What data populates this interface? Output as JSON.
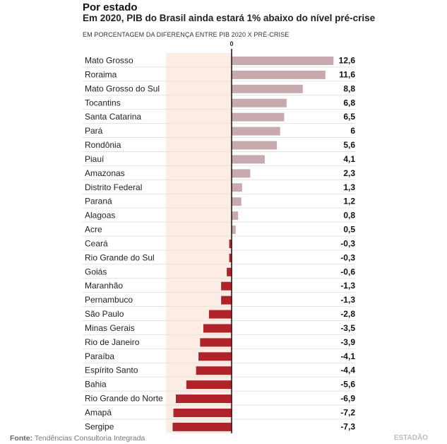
{
  "title": "Por estado",
  "subtitle": "Em 2020, PIB do Brasil ainda estará 1% abaixo do nível pré-crise",
  "unit_label": "EM PORCENTAGEM DA DIFERENÇA ENTRE PIB 2020 X PRÉ-CRISE",
  "source_label": "Fonte:",
  "source_text": "Tendências Consultoria Integrada",
  "logo": "ESTADÃO",
  "colors": {
    "positive": "#c6aaad",
    "negative": "#b0232a",
    "shade": "#fdece3",
    "axis": "#111111"
  },
  "chart_data": {
    "type": "bar",
    "orientation": "horizontal",
    "zero_tick_label": "0",
    "categories": [
      "Mato Grosso",
      "Roraima",
      "Mato Grosso do Sul",
      "Tocantins",
      "Santa Catarina",
      "Pará",
      "Rondônia",
      "Piauí",
      "Amazonas",
      "Distrito Federal",
      "Paraná",
      "Alagoas",
      "Acre",
      "Ceará",
      "Rio Grande do Sul",
      "Goiás",
      "Maranhão",
      "Pernambuco",
      "São Paulo",
      "Minas Gerais",
      "Rio de Janeiro",
      "Paraíba",
      "Espírito Santo",
      "Bahia",
      "Rio Grande do Norte",
      "Amapá",
      "Sergipe"
    ],
    "values": [
      12.6,
      11.6,
      8.8,
      6.8,
      6.5,
      6,
      5.6,
      4.1,
      2.3,
      1.3,
      1.2,
      0.8,
      0.5,
      -0.3,
      -0.3,
      -0.6,
      -1.3,
      -1.3,
      -2.8,
      -3.5,
      -3.9,
      -4.1,
      -4.4,
      -5.6,
      -6.9,
      -7.2,
      -7.3
    ],
    "value_labels": [
      "12,6",
      "11,6",
      "8,8",
      "6,8",
      "6,5",
      "6",
      "5,6",
      "4,1",
      "2,3",
      "1,3",
      "1,2",
      "0,8",
      "0,5",
      "-0,3",
      "-0,3",
      "-0,6",
      "-1,3",
      "-1,3",
      "-2,8",
      "-3,5",
      "-3,9",
      "-4,1",
      "-4,4",
      "-5,6",
      "-6,9",
      "-7,2",
      "-7,3"
    ],
    "xlim": [
      -8.1,
      12.6
    ],
    "grid": false
  }
}
